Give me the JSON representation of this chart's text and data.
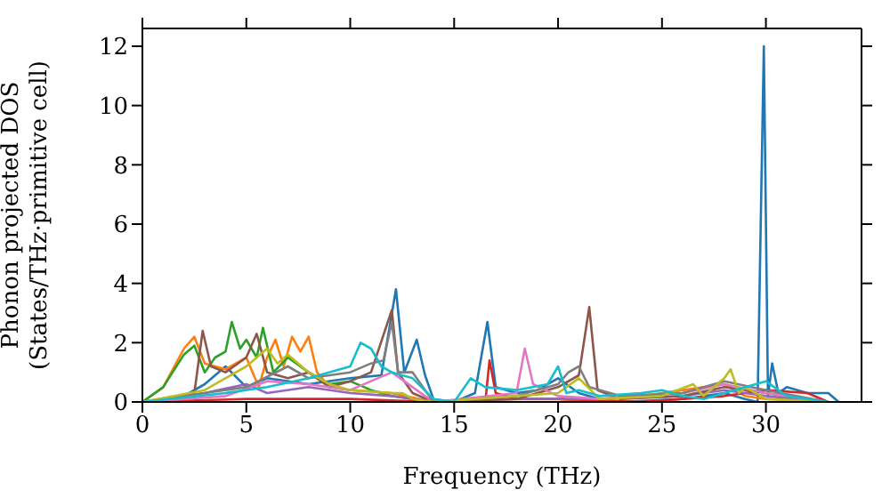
{
  "chart_data": {
    "type": "line",
    "xlabel": "Frequency (THz)",
    "ylabel": "Phonon projected DOS\n(States/THz·primitive cell)",
    "xlim": [
      0,
      34.6
    ],
    "xticks": [
      0,
      5,
      10,
      15,
      20,
      25,
      30
    ],
    "ylim": [
      0,
      12.6
    ],
    "yticks": [
      0,
      2,
      4,
      6,
      8,
      10,
      12
    ],
    "legend": false,
    "marker": "none",
    "line_style": "solid",
    "series": [
      {
        "color": "#1f77b4",
        "x": [
          0,
          2,
          3,
          4,
          5,
          6,
          8,
          10,
          11.5,
          12.2,
          12.6,
          13.2,
          13.6,
          14,
          15,
          16,
          16.6,
          17,
          18,
          19,
          20,
          21,
          22,
          23,
          26,
          28,
          29,
          29.6,
          29.9,
          30.1,
          30.3,
          30.6,
          31,
          32,
          33,
          33.5
        ],
        "values": [
          0,
          0.2,
          0.6,
          1.2,
          0.5,
          0.8,
          0.6,
          0.8,
          0.9,
          3.8,
          1.0,
          2.1,
          0.9,
          0.1,
          0,
          0.3,
          2.7,
          0.5,
          0.3,
          0.4,
          0.8,
          0.3,
          0.1,
          0,
          0.1,
          0.3,
          0.1,
          0,
          12,
          0.2,
          1.3,
          0.3,
          0.5,
          0.3,
          0.3,
          0
        ]
      },
      {
        "color": "#ff7f0e",
        "x": [
          0,
          1,
          2,
          2.5,
          3,
          4,
          5,
          5.6,
          6,
          6.4,
          6.8,
          7.2,
          7.6,
          8,
          8.4,
          9,
          10,
          12,
          14,
          20,
          24,
          28,
          29,
          30,
          33
        ],
        "values": [
          0,
          0.5,
          1.8,
          2.2,
          1.3,
          1.1,
          1.5,
          0.5,
          1.5,
          2.1,
          1.2,
          2.2,
          1.7,
          2.2,
          1.0,
          0.5,
          0.4,
          0.3,
          0,
          0,
          0.2,
          0.6,
          0.2,
          0.1,
          0
        ]
      },
      {
        "color": "#2ca02c",
        "x": [
          0,
          1,
          2,
          2.5,
          3,
          3.5,
          4,
          4.3,
          4.7,
          5,
          5.5,
          5.8,
          6.3,
          7,
          8,
          9,
          10,
          11,
          12,
          13
        ],
        "values": [
          0,
          0.5,
          1.6,
          1.9,
          1.0,
          1.5,
          1.7,
          2.7,
          1.8,
          2.1,
          1.5,
          2.5,
          1.0,
          1.5,
          1.0,
          0.6,
          0.7,
          0.4,
          0.2,
          0.1
        ]
      },
      {
        "color": "#d62728",
        "x": [
          0,
          5,
          10,
          14,
          16.5,
          16.7,
          17,
          18,
          20,
          24,
          28,
          30,
          32,
          33
        ],
        "values": [
          0,
          0.1,
          0.1,
          0,
          0,
          1.4,
          0.3,
          0.1,
          0.1,
          0,
          0.2,
          0.4,
          0.3,
          0
        ]
      },
      {
        "color": "#9467bd",
        "x": [
          0,
          3,
          5,
          6,
          8,
          10,
          12,
          14,
          18,
          22,
          26,
          28,
          30,
          33
        ],
        "values": [
          0,
          0.3,
          0.6,
          0.3,
          0.5,
          0.3,
          0.2,
          0,
          0.1,
          0.1,
          0.2,
          0.4,
          0.2,
          0
        ]
      },
      {
        "color": "#8c564b",
        "x": [
          0,
          2.5,
          2.9,
          3.3,
          4,
          5,
          5.5,
          6,
          7,
          8,
          9,
          10,
          11,
          12,
          12.3,
          13,
          14,
          18,
          20,
          21,
          21.5,
          21.9,
          23,
          26,
          28,
          30,
          33
        ],
        "values": [
          0,
          0.3,
          2.4,
          1.2,
          1.0,
          1.5,
          2.3,
          1.0,
          0.8,
          1.0,
          0.5,
          0.7,
          1.0,
          3.1,
          1.0,
          0.3,
          0,
          0.1,
          0.5,
          0.9,
          3.2,
          0.4,
          0.1,
          0.2,
          0.5,
          0.3,
          0
        ]
      },
      {
        "color": "#e377c2",
        "x": [
          0,
          4,
          6,
          8,
          10,
          12,
          13,
          14,
          18,
          18.4,
          18.8,
          20,
          22,
          26,
          28,
          30,
          33
        ],
        "values": [
          0,
          0.2,
          0.7,
          0.6,
          0.4,
          1.0,
          0.5,
          0,
          0.3,
          1.8,
          0.6,
          0.2,
          0.1,
          0.3,
          0.6,
          0.3,
          0
        ]
      },
      {
        "color": "#7f7f7f",
        "x": [
          0,
          5,
          7,
          8,
          10,
          11,
          11.6,
          12,
          12.3,
          13,
          14,
          18,
          20,
          20.5,
          21,
          21.5,
          23,
          26,
          28,
          30,
          33
        ],
        "values": [
          0,
          0.5,
          1.2,
          0.8,
          1.0,
          1.3,
          1.4,
          2.7,
          1.0,
          1.0,
          0,
          0.2,
          0.6,
          1.0,
          1.2,
          0.5,
          0.2,
          0.3,
          0.7,
          0.4,
          0
        ]
      },
      {
        "color": "#bcbd22",
        "x": [
          0,
          3,
          5,
          6,
          6.5,
          7,
          8,
          9,
          10,
          12,
          12.5,
          13,
          14,
          20,
          21,
          22,
          25,
          26.5,
          27,
          28,
          28.3,
          28.7,
          29,
          30,
          33
        ],
        "values": [
          0,
          0.4,
          1.2,
          1.8,
          1.3,
          1.6,
          1.0,
          0.6,
          0.4,
          0.3,
          0.3,
          0.1,
          0,
          0.3,
          0.8,
          0.1,
          0.2,
          0.6,
          0.2,
          0.8,
          1.1,
          0.3,
          0.5,
          0.1,
          0
        ]
      },
      {
        "color": "#17becf",
        "x": [
          0,
          4,
          6,
          8,
          10,
          10.5,
          11,
          11.5,
          12,
          13,
          14,
          15,
          15.8,
          16.5,
          18,
          19.5,
          20,
          20.4,
          21,
          22,
          24,
          25,
          26,
          27,
          28,
          30,
          31,
          33
        ],
        "values": [
          0,
          0.3,
          0.5,
          0.8,
          1.2,
          2.0,
          1.8,
          1.2,
          1.0,
          0.8,
          0.1,
          0,
          0.8,
          0.5,
          0.4,
          0.6,
          1.2,
          0.3,
          0.4,
          0.2,
          0.3,
          0.4,
          0.2,
          0.1,
          0.3,
          0.7,
          0.2,
          0
        ]
      }
    ]
  }
}
